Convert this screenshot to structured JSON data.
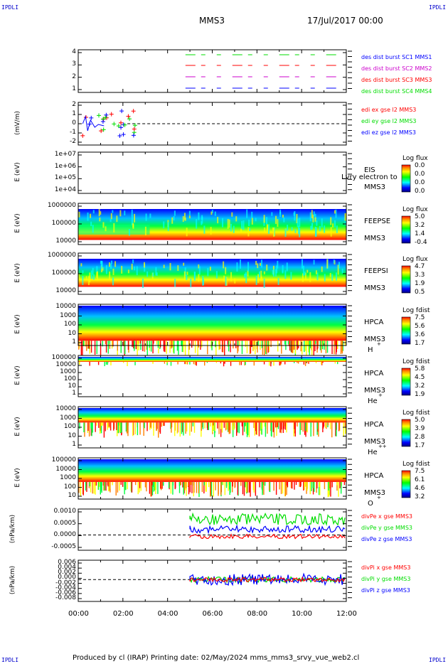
{
  "corners": {
    "tl": "IPDLI",
    "tr": "IPDLI",
    "bl": "IPDLI",
    "br": "IPDLI"
  },
  "header": {
    "spacecraft": "MMS3",
    "date": "17/Jul/2017 00:00"
  },
  "footer": {
    "text": "Produced by cl (IRAP)   Printing date: 02/May/2024   mms_mms3_srvy_vue_web2.cl"
  },
  "colors": {
    "blue": "#0000ff",
    "green": "#00dd00",
    "red": "#ff0000",
    "magenta": "#cc00cc"
  },
  "chart_data": [
    {
      "type": "line",
      "title": "",
      "ylabel": "",
      "yticks": [
        "4",
        "3",
        "2",
        "1"
      ],
      "ylim": [
        0.5,
        4.5
      ],
      "legend": [
        {
          "label": "des dist burst SC1 MMS1",
          "color": "#0000ff"
        },
        {
          "label": "des dist burst SC2 MMS2",
          "color": "#cc00cc"
        },
        {
          "label": "des dist burst SC3 MMS3",
          "color": "#ff0000"
        },
        {
          "label": "des dist burst SC4 MMS4",
          "color": "#00dd00"
        }
      ]
    },
    {
      "type": "scatter",
      "title": "",
      "ylabel": "(mV/m)",
      "yticks": [
        "2",
        "1",
        "0",
        "-1",
        "-2"
      ],
      "ylim": [
        -2.5,
        2.5
      ],
      "legend": [
        {
          "label": "edi ex gse l2 MMS3",
          "color": "#ff0000"
        },
        {
          "label": "edi ey gse l2 MMS3",
          "color": "#00dd00"
        },
        {
          "label": "edi ez gse l2 MMS3",
          "color": "#0000ff"
        }
      ]
    },
    {
      "type": "heatmap",
      "ylabel": "E (eV)",
      "yticks": [
        "1e+07",
        "1e+06",
        "1e+05",
        "1e+04"
      ],
      "side": [
        "EIS",
        "MMS3"
      ],
      "overlay": "Lvry electron to",
      "cb_title": "Log flux",
      "cb_vals": [
        "0.0",
        "0.0",
        "0.0",
        "0.0"
      ]
    },
    {
      "type": "heatmap",
      "ylabel": "E (eV)",
      "yticks": [
        "1000000",
        "100000",
        "10000"
      ],
      "side": [
        "FEEPSE",
        "MMS3"
      ],
      "cb_title": "Log flux",
      "cb_vals": [
        "5.0",
        "3.2",
        "1.4",
        "-0.4"
      ]
    },
    {
      "type": "heatmap",
      "ylabel": "E (eV)",
      "yticks": [
        "1000000",
        "100000",
        "10000"
      ],
      "side": [
        "FEEPSI",
        "MMS3"
      ],
      "cb_title": "Log flux",
      "cb_vals": [
        "4.7",
        "3.3",
        "1.9",
        "0.5"
      ]
    },
    {
      "type": "heatmap",
      "ylabel": "E (eV)",
      "yticks": [
        "10000",
        "1000",
        "100",
        "10",
        "1"
      ],
      "side": [
        "HPCA",
        "MMS3"
      ],
      "species": "H",
      "charge": "+",
      "cb_title": "Log fdist",
      "cb_vals": [
        "7.5",
        "5.6",
        "3.6",
        "1.7"
      ]
    },
    {
      "type": "heatmap",
      "ylabel": "E (eV)",
      "yticks": [
        "100000",
        "10000",
        "1000",
        "100",
        "10",
        "1"
      ],
      "side": [
        "HPCA",
        "MMS3"
      ],
      "species": "He",
      "charge": "+",
      "cb_title": "Log fdist",
      "cb_vals": [
        "5.8",
        "4.5",
        "3.2",
        "1.9"
      ]
    },
    {
      "type": "heatmap",
      "ylabel": "E (eV)",
      "yticks": [
        "10000",
        "1000",
        "100",
        "10",
        "1"
      ],
      "side": [
        "HPCA",
        "MMS3"
      ],
      "species": "He",
      "charge": "++",
      "cb_title": "Log fdist",
      "cb_vals": [
        "5.0",
        "3.9",
        "2.8",
        "1.7"
      ]
    },
    {
      "type": "heatmap",
      "ylabel": "E (eV)",
      "yticks": [
        "100000",
        "10000",
        "1000",
        "100",
        "10"
      ],
      "side": [
        "HPCA",
        "MMS3"
      ],
      "species": "O",
      "charge": "+",
      "cb_title": "Log fdist",
      "cb_vals": [
        "7.5",
        "6.1",
        "4.6",
        "3.2"
      ]
    },
    {
      "type": "line",
      "ylabel": "(nPa/km)",
      "yticks": [
        "0.0010",
        "0.0005",
        "0.0000",
        "-0.0005"
      ],
      "ylim": [
        -0.0008,
        0.0013
      ],
      "legend": [
        {
          "label": "divPe x gse MMS3",
          "color": "#ff0000"
        },
        {
          "label": "divPe y gse MMS3",
          "color": "#00dd00"
        },
        {
          "label": "divPe z gse MMS3",
          "color": "#0000ff"
        }
      ]
    },
    {
      "type": "line",
      "ylabel": "(nPa/km)",
      "yticks": [
        "0.006",
        "0.004",
        "0.002",
        "0.000",
        "-0.002",
        "-0.004",
        "-0.006",
        "-0.008"
      ],
      "ylim": [
        -0.008,
        0.006
      ],
      "legend": [
        {
          "label": "divPi x gse MMS3",
          "color": "#ff0000"
        },
        {
          "label": "divPi y gse MMS3",
          "color": "#00dd00"
        },
        {
          "label": "divPi z gse MMS3",
          "color": "#0000ff"
        }
      ]
    }
  ],
  "xaxis": {
    "ticks": [
      "00:00",
      "02:00",
      "04:00",
      "06:00",
      "08:00",
      "10:00",
      "12:00"
    ],
    "range_hours": [
      0,
      12
    ]
  }
}
